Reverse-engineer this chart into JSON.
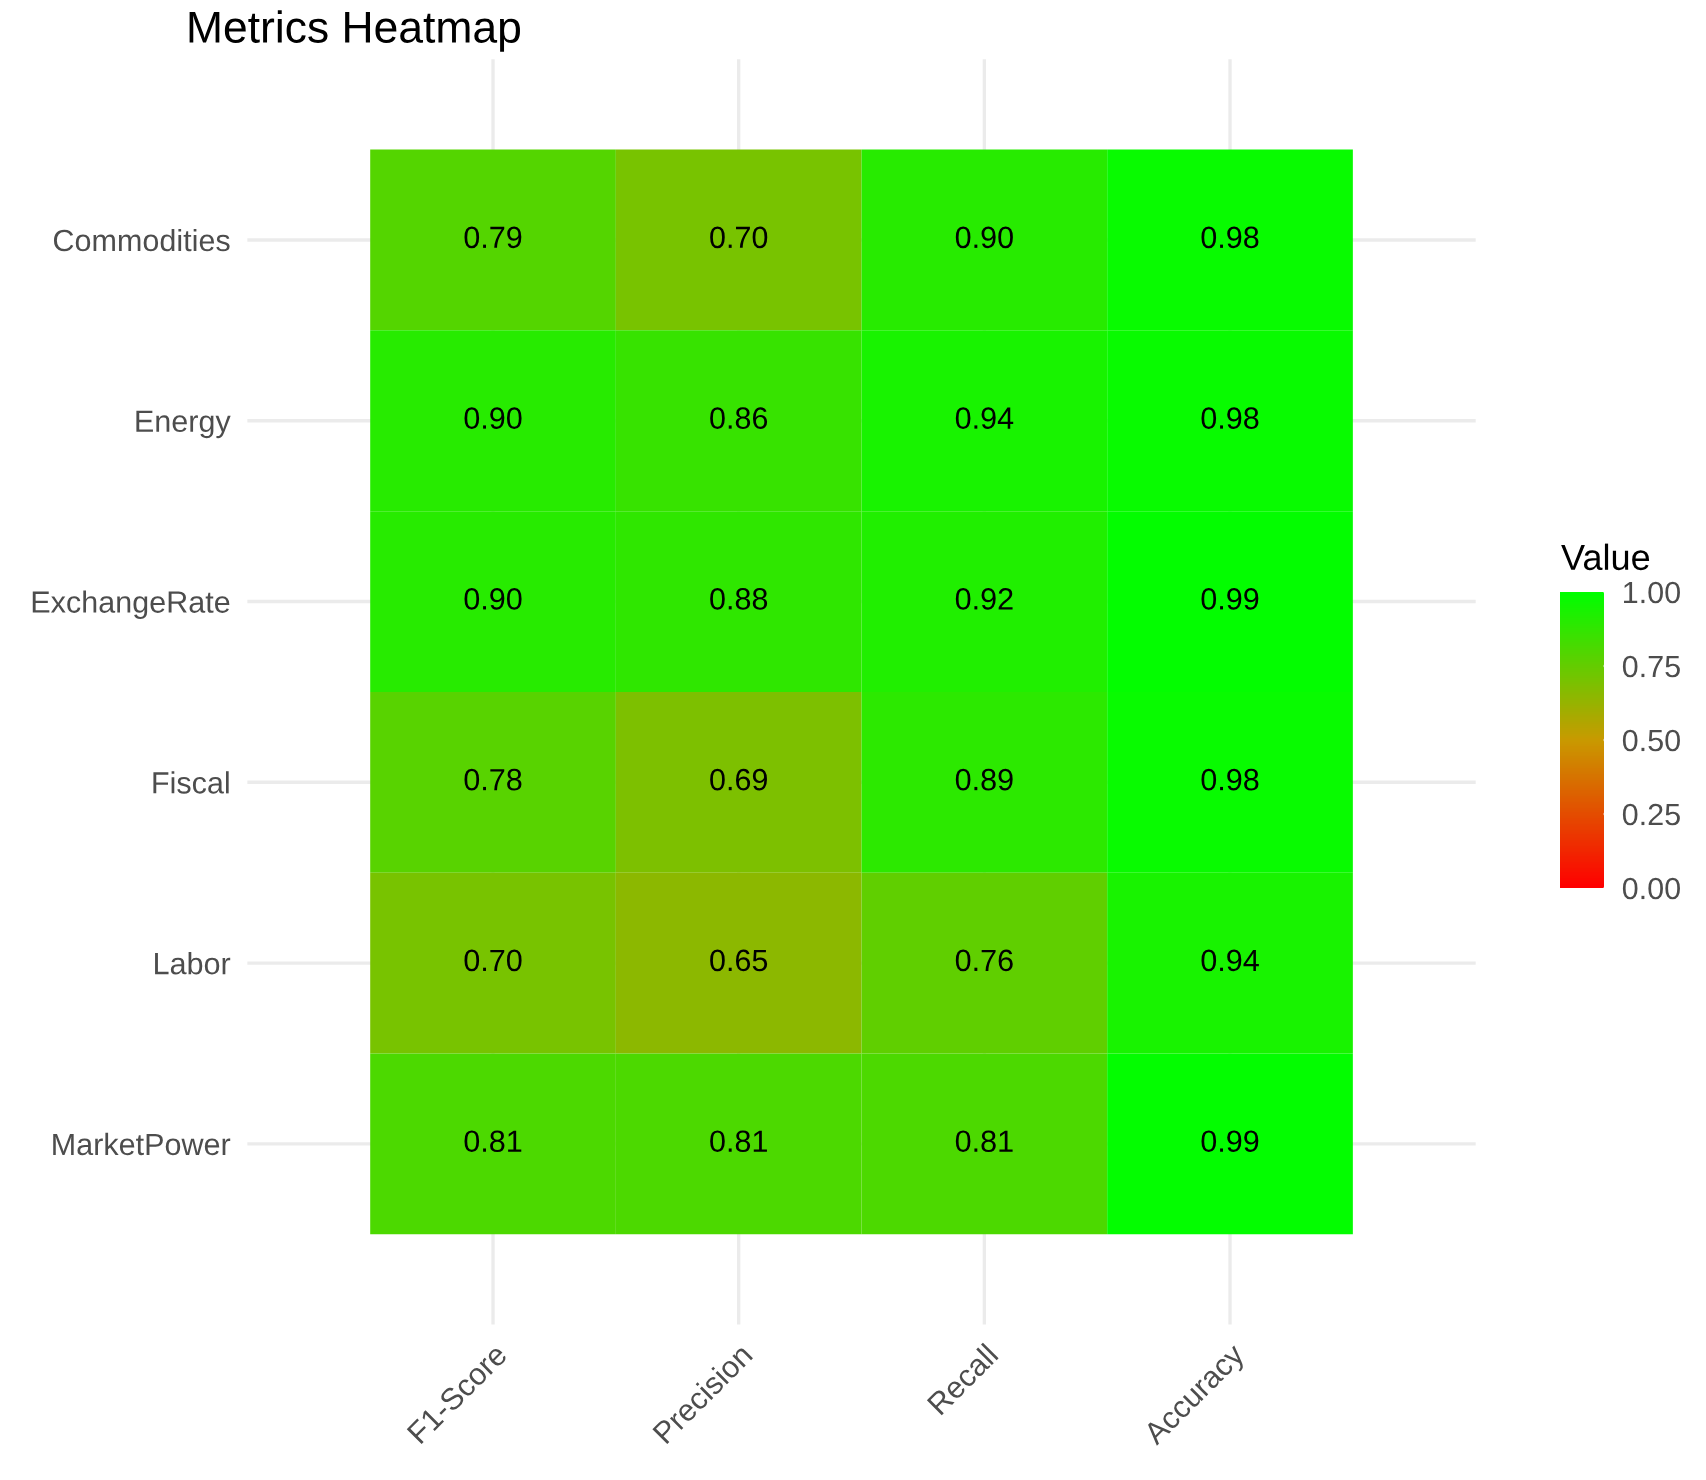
{
  "chart_data": {
    "type": "heatmap",
    "title": "Metrics Heatmap",
    "categories": [
      "F1-Score",
      "Precision",
      "Recall",
      "Accuracy"
    ],
    "y_categories": [
      "Commodities",
      "Energy",
      "ExchangeRate",
      "Fiscal",
      "Labor",
      "MarketPower"
    ],
    "cells": [
      [
        0.79,
        0.7,
        0.9,
        0.98
      ],
      [
        0.9,
        0.86,
        0.94,
        0.98
      ],
      [
        0.9,
        0.88,
        0.92,
        0.99
      ],
      [
        0.78,
        0.69,
        0.89,
        0.98
      ],
      [
        0.7,
        0.65,
        0.76,
        0.94
      ],
      [
        0.81,
        0.81,
        0.81,
        0.99
      ]
    ],
    "cell_labels": [
      [
        "0.79",
        "0.70",
        "0.90",
        "0.98"
      ],
      [
        "0.90",
        "0.86",
        "0.94",
        "0.98"
      ],
      [
        "0.90",
        "0.88",
        "0.92",
        "0.99"
      ],
      [
        "0.78",
        "0.69",
        "0.89",
        "0.98"
      ],
      [
        "0.70",
        "0.65",
        "0.76",
        "0.94"
      ],
      [
        "0.81",
        "0.81",
        "0.81",
        "0.99"
      ]
    ],
    "clim": [
      0,
      1
    ],
    "cticks": [
      {
        "value": 0,
        "label": "0.00"
      },
      {
        "value": 0.25,
        "label": "0.25"
      },
      {
        "value": 0.5,
        "label": "0.50"
      },
      {
        "value": 0.75,
        "label": "0.75"
      },
      {
        "value": 1,
        "label": "1.00"
      }
    ],
    "clabel": "Value",
    "data_labels": true,
    "grid": true
  }
}
